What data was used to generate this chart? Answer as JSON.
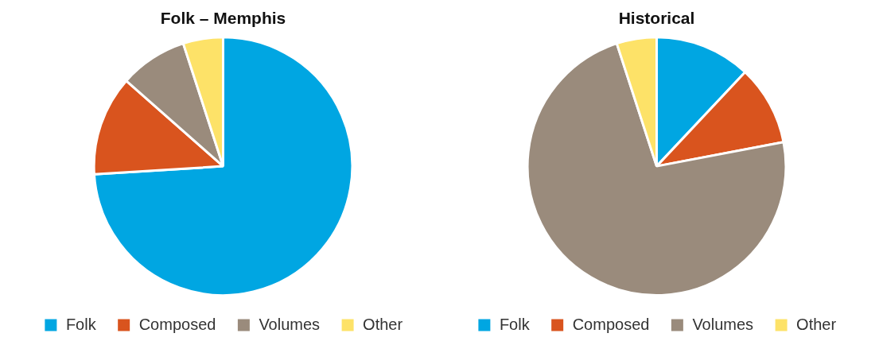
{
  "chart_data": [
    {
      "type": "pie",
      "title": "Folk – Memphis",
      "categories": [
        "Folk",
        "Composed",
        "Volumes",
        "Other"
      ],
      "values": [
        74,
        12.5,
        8.5,
        5
      ],
      "colors": [
        "#00a6e2",
        "#d9541e",
        "#9a8b7c",
        "#fde268"
      ],
      "legend": "bottom"
    },
    {
      "type": "pie",
      "title": "Historical",
      "categories": [
        "Folk",
        "Composed",
        "Volumes",
        "Other"
      ],
      "values": [
        12,
        10,
        73,
        5
      ],
      "colors": [
        "#00a6e2",
        "#d9541e",
        "#9a8b7c",
        "#fde268"
      ],
      "legend": "bottom"
    }
  ]
}
